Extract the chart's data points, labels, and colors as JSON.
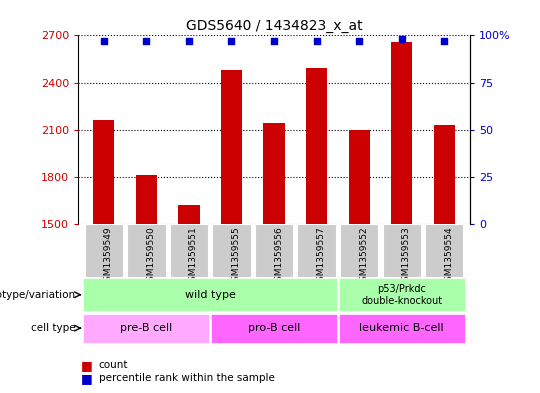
{
  "title": "GDS5640 / 1434823_x_at",
  "samples": [
    "GSM1359549",
    "GSM1359550",
    "GSM1359551",
    "GSM1359555",
    "GSM1359556",
    "GSM1359557",
    "GSM1359552",
    "GSM1359553",
    "GSM1359554"
  ],
  "counts": [
    2160,
    1810,
    1620,
    2480,
    2140,
    2490,
    2100,
    2660,
    2130
  ],
  "percentiles": [
    97,
    97,
    97,
    97,
    97,
    97,
    97,
    98,
    97
  ],
  "ylim_left": [
    1500,
    2700
  ],
  "ylim_right": [
    0,
    100
  ],
  "yticks_left": [
    1500,
    1800,
    2100,
    2400,
    2700
  ],
  "yticks_right": [
    0,
    25,
    50,
    75,
    100
  ],
  "bar_color": "#cc0000",
  "dot_color": "#0000cc",
  "wt_color": "#aaffaa",
  "preB_color": "#ffaaff",
  "proB_color": "#ff66ff",
  "leuk_color": "#ff66ff",
  "label_color_left": "#cc0000",
  "label_color_right": "#0000cc",
  "sample_bg_color": "#cccccc",
  "genotype_label": "genotype/variation",
  "celltype_label": "cell type",
  "wt_label": "wild type",
  "ko_label": "p53/Prkdc\ndouble-knockout",
  "preB_label": "pre-B cell",
  "proB_label": "pro-B cell",
  "leuk_label": "leukemic B-cell",
  "legend_count": "count",
  "legend_pct": "percentile rank within the sample",
  "legend_count_color": "#cc0000",
  "legend_dot_color": "#0000cc"
}
